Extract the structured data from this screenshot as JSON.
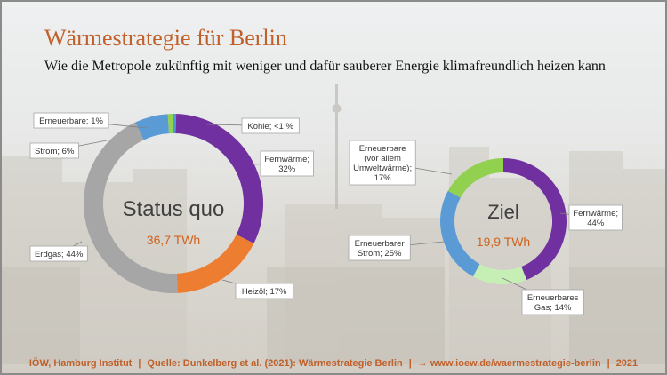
{
  "title": "Wärmestrategie für Berlin",
  "subtitle": "Wie die Metropole zukünftig mit weniger und dafür sauberer Energie klimafreundlich heizen kann",
  "footer": {
    "org": "IÖW, Hamburg Institut",
    "source": "Quelle: Dunkelberg et al. (2021): Wärmestrategie Berlin",
    "link": "→ www.ioew.de/waermestrategie-berlin",
    "year": "2021"
  },
  "colors": {
    "title": "#c0602a",
    "total": "#d0621d"
  },
  "chart_data": [
    {
      "type": "donut",
      "center_label": "Status quo",
      "total_label": "36,7 TWh",
      "total_value": 36.7,
      "unit": "TWh",
      "slices": [
        {
          "name": "Kohle",
          "label": "Kohle; <1 %",
          "value": 0.5,
          "color": "#4a9ad4"
        },
        {
          "name": "Fernwärme",
          "label": "Fernwärme;\n32%",
          "value": 32,
          "color": "#7030a0"
        },
        {
          "name": "Heizöl",
          "label": "Heizöl; 17%",
          "value": 17,
          "color": "#ed7d31"
        },
        {
          "name": "Erdgas",
          "label": "Erdgas; 44%",
          "value": 44,
          "color": "#a6a6a6"
        },
        {
          "name": "Strom",
          "label": "Strom; 6%",
          "value": 6,
          "color": "#5b9bd5"
        },
        {
          "name": "Erneuerbare",
          "label": "Erneuerbare; 1%",
          "value": 1,
          "color": "#92d050"
        }
      ]
    },
    {
      "type": "donut",
      "center_label": "Ziel",
      "total_label": "19,9 TWh",
      "total_value": 19.9,
      "unit": "TWh",
      "slices": [
        {
          "name": "Fernwärme",
          "label": "Fernwärme;\n44%",
          "value": 44,
          "color": "#7030a0"
        },
        {
          "name": "Erneuerbares Gas",
          "label": "Erneuerbares\nGas; 14%",
          "value": 14,
          "color": "#c6efb6"
        },
        {
          "name": "Erneuerbarer Strom",
          "label": "Erneuerbarer\nStrom; 25%",
          "value": 25,
          "color": "#5b9bd5"
        },
        {
          "name": "Erneuerbare (vor allem Umweltwärme)",
          "label": "Erneuerbare\n(vor allem\nUmweltwärme);\n17%",
          "value": 17,
          "color": "#92d050"
        }
      ]
    }
  ]
}
